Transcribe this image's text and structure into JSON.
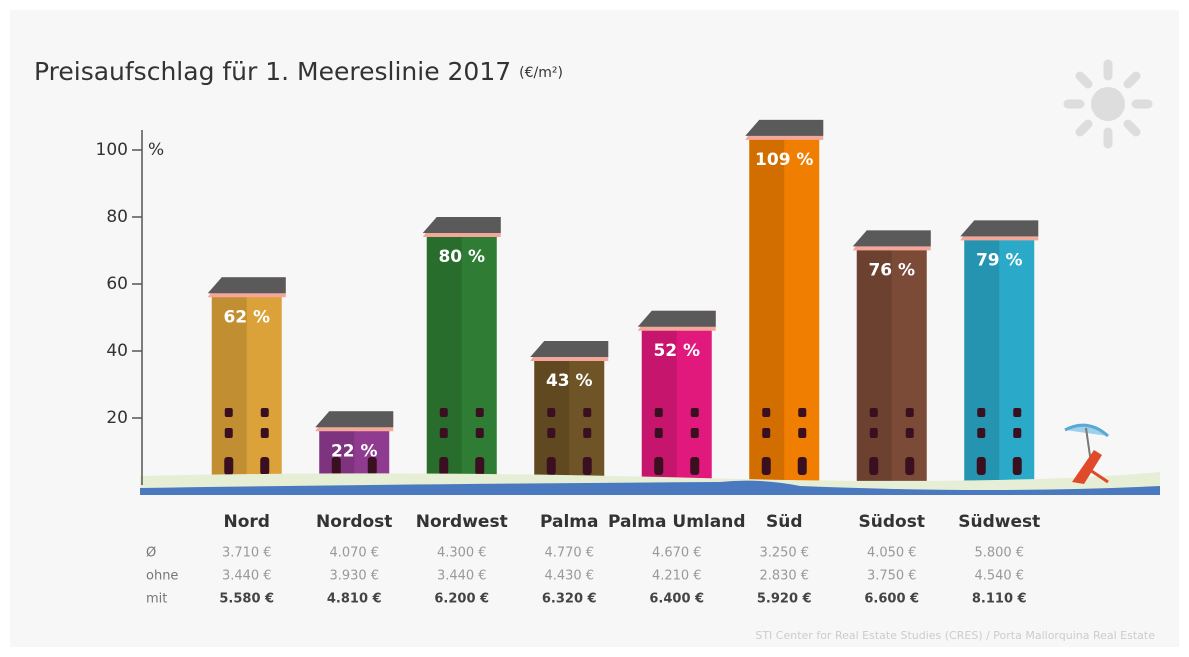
{
  "chart_data": {
    "type": "bar",
    "title": "Preisaufschlag für 1. Meereslinie 2017",
    "subtitle": "(€/m²)",
    "categories": [
      "Nord",
      "Nordost",
      "Nordwest",
      "Palma",
      "Palma Umland",
      "Süd",
      "Südost",
      "Südwest"
    ],
    "values": [
      62,
      22,
      80,
      43,
      52,
      109,
      76,
      79
    ],
    "value_labels": [
      "62 %",
      "22 %",
      "80 %",
      "43 %",
      "52 %",
      "109 %",
      "76 %",
      "79 %"
    ],
    "colors": [
      "#dca23a",
      "#8f3b8f",
      "#2f7d34",
      "#6e5426",
      "#e2197c",
      "#f07e00",
      "#7b4b37",
      "#2aa9c9"
    ],
    "ylim": [
      0,
      110
    ],
    "yticks": [
      20,
      40,
      60,
      80,
      100
    ],
    "y_unit": "%",
    "table": {
      "row_labels": [
        "Ø",
        "ohne",
        "mit"
      ],
      "rows": [
        [
          "3.710 €",
          "4.070 €",
          "4.300 €",
          "4.770 €",
          "4.670 €",
          "3.250 €",
          "4.050 €",
          "5.800 €"
        ],
        [
          "3.440 €",
          "3.930 €",
          "3.440 €",
          "4.430 €",
          "4.210 €",
          "2.830 €",
          "3.750 €",
          "4.540 €"
        ],
        [
          "5.580 €",
          "4.810 €",
          "6.200 €",
          "6.320 €",
          "6.400 €",
          "5.920 €",
          "6.600 €",
          "8.110 €"
        ]
      ]
    },
    "source": "STI Center for Real Estate Studies (CRES) / Porta Mallorquina Real Estate"
  }
}
